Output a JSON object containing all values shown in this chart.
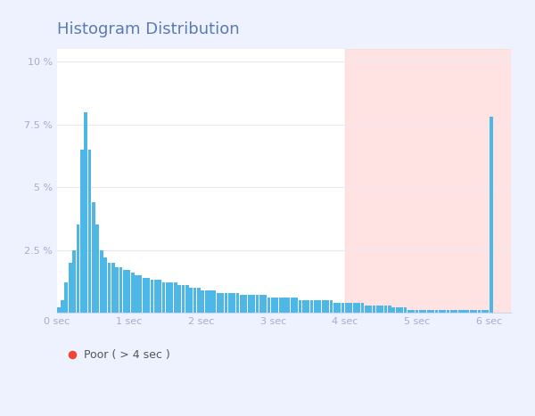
{
  "title": "Histogram Distribution",
  "title_color": "#5a7ab5",
  "title_fontsize": 13,
  "xlim": [
    0,
    6.3
  ],
  "ylim": [
    0,
    0.105
  ],
  "yticks": [
    0,
    0.025,
    0.05,
    0.075,
    0.1
  ],
  "ytick_labels": [
    "",
    "2.5 %",
    "5 %",
    "7.5 %",
    "10 %"
  ],
  "xtick_positions": [
    0,
    1,
    2,
    3,
    4,
    5,
    6
  ],
  "xtick_labels": [
    "0 sec",
    "1 sec",
    "2 sec",
    "3 sec",
    "4 sec",
    "5 sec",
    "6 sec"
  ],
  "bar_color": "#4db8e8",
  "bar_width": 0.055,
  "poor_threshold": 4.0,
  "poor_color": "#ffcccc",
  "poor_alpha": 0.55,
  "poor_label": "Poor ( > 4 sec )",
  "poor_dot_color": "#f44336",
  "grid_color": "#e8e8f0",
  "background_color": "#ffffff",
  "frame_color": "#d0d8f0",
  "tick_color": "#aaaacc",
  "tick_fontsize": 8,
  "figure_bg": "#eef2ff",
  "bar_values": [
    0.002,
    0.005,
    0.012,
    0.02,
    0.025,
    0.035,
    0.065,
    0.08,
    0.065,
    0.044,
    0.035,
    0.025,
    0.022,
    0.02,
    0.02,
    0.018,
    0.018,
    0.017,
    0.017,
    0.016,
    0.015,
    0.015,
    0.014,
    0.014,
    0.013,
    0.013,
    0.013,
    0.012,
    0.012,
    0.012,
    0.012,
    0.011,
    0.011,
    0.011,
    0.01,
    0.01,
    0.01,
    0.009,
    0.009,
    0.009,
    0.009,
    0.008,
    0.008,
    0.008,
    0.008,
    0.008,
    0.008,
    0.007,
    0.007,
    0.007,
    0.007,
    0.007,
    0.007,
    0.007,
    0.006,
    0.006,
    0.006,
    0.006,
    0.006,
    0.006,
    0.006,
    0.006,
    0.005,
    0.005,
    0.005,
    0.005,
    0.005,
    0.005,
    0.005,
    0.005,
    0.005,
    0.004,
    0.004,
    0.004,
    0.004,
    0.004,
    0.004,
    0.004,
    0.004,
    0.003,
    0.003,
    0.003,
    0.003,
    0.003,
    0.003,
    0.003,
    0.002,
    0.002,
    0.002,
    0.002,
    0.001,
    0.001,
    0.001,
    0.001,
    0.001,
    0.001,
    0.001,
    0.001,
    0.001,
    0.001,
    0.001,
    0.001,
    0.001,
    0.001,
    0.001,
    0.001,
    0.001,
    0.001,
    0.001,
    0.001,
    0.001,
    0.078
  ]
}
